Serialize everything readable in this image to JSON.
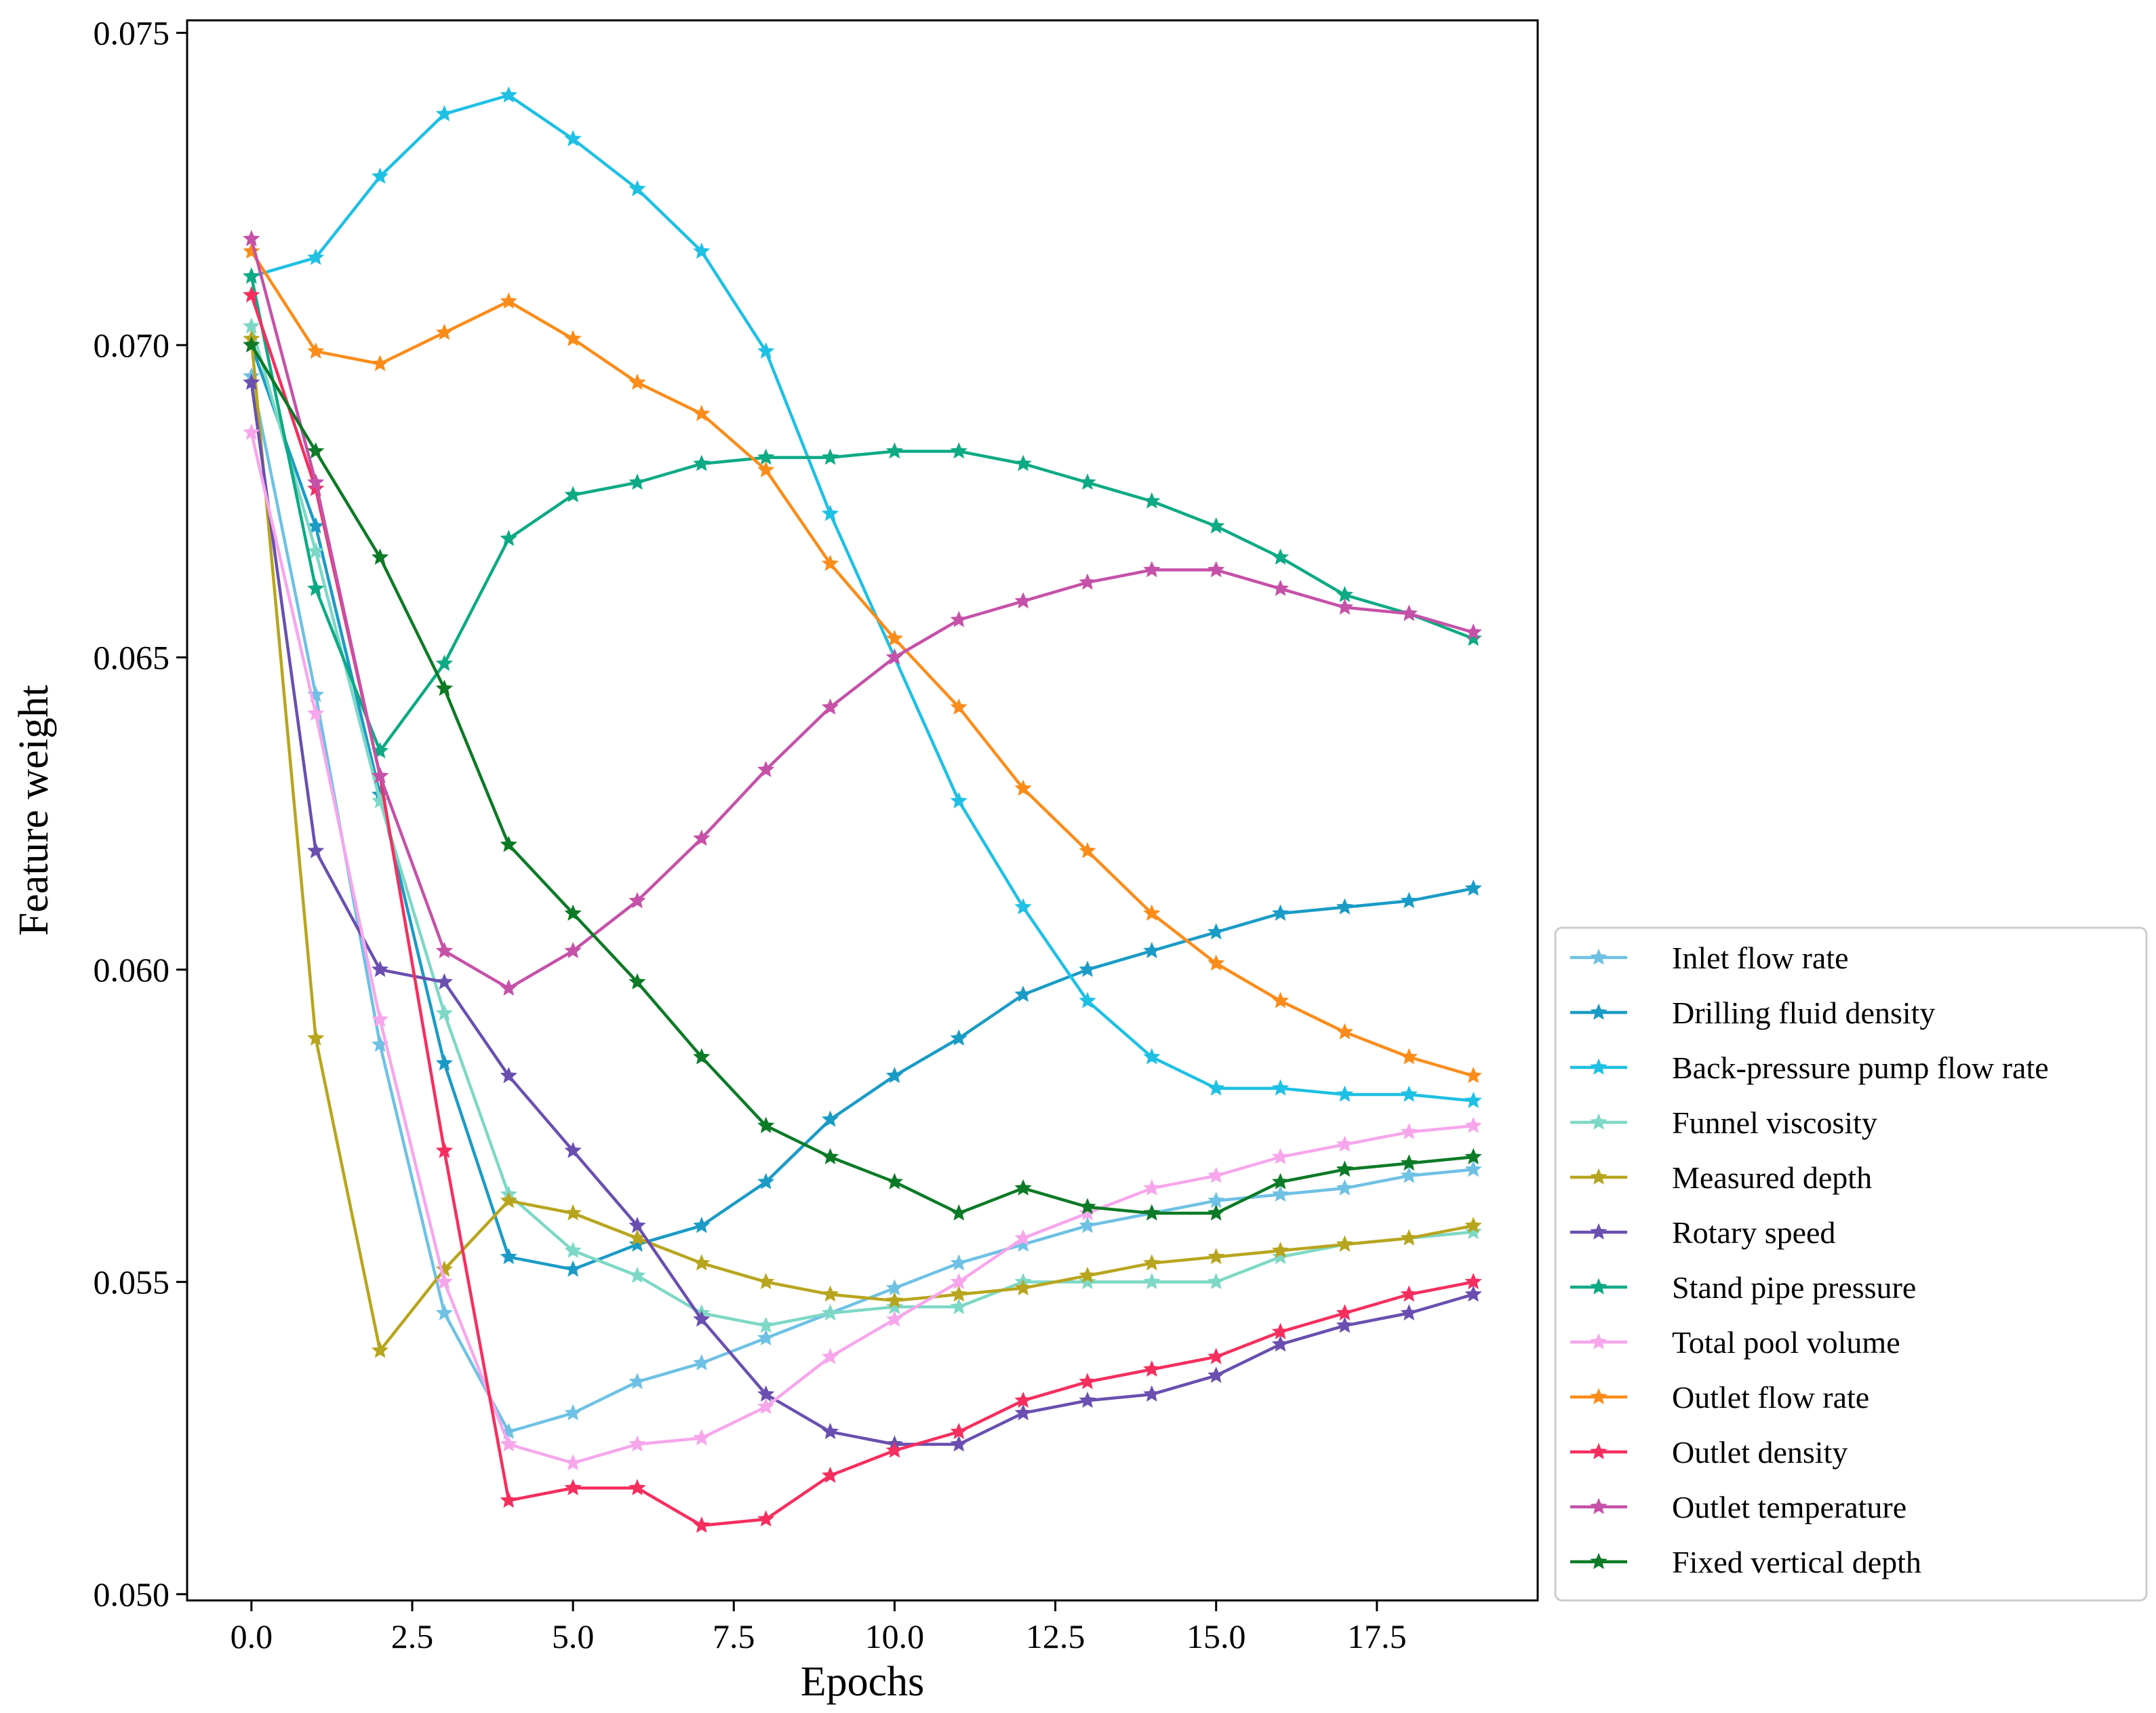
{
  "chart_data": {
    "type": "line",
    "title": "",
    "xlabel": "Epochs",
    "ylabel": "Feature weight",
    "xlim": [
      -1,
      20
    ],
    "ylim": [
      0.0499,
      0.0752
    ],
    "xticks": [
      "0.0",
      "2.5",
      "5.0",
      "7.5",
      "10.0",
      "12.5",
      "15.0",
      "17.5"
    ],
    "xtick_values": [
      0,
      2.5,
      5,
      7.5,
      10,
      12.5,
      15,
      17.5
    ],
    "yticks": [
      "0.050",
      "0.055",
      "0.060",
      "0.065",
      "0.070",
      "0.075"
    ],
    "ytick_values": [
      0.05,
      0.055,
      0.06,
      0.065,
      0.07,
      0.075
    ],
    "grid": false,
    "legend_position": "lower-right-outside",
    "marker": "star",
    "x": [
      0,
      1,
      2,
      3,
      4,
      5,
      6,
      7,
      8,
      9,
      10,
      11,
      12,
      13,
      14,
      15,
      16,
      17,
      18,
      19
    ],
    "series": [
      {
        "name": "Inlet flow rate",
        "color": "#6ec1e4",
        "values": [
          0.0695,
          0.0644,
          0.0588,
          0.0545,
          0.0526,
          0.0529,
          0.0534,
          0.0537,
          0.0541,
          0.0545,
          0.0549,
          0.0553,
          0.0556,
          0.0559,
          0.0561,
          0.0563,
          0.0564,
          0.0565,
          0.0567,
          0.0568
        ]
      },
      {
        "name": "Drilling fluid density",
        "color": "#1a9bc6",
        "values": [
          0.07,
          0.0671,
          0.0628,
          0.0585,
          0.0554,
          0.0552,
          0.0556,
          0.0559,
          0.0566,
          0.0576,
          0.0583,
          0.0589,
          0.0596,
          0.06,
          0.0603,
          0.0606,
          0.0609,
          0.061,
          0.0611,
          0.0613
        ]
      },
      {
        "name": "Back-pressure pump flow rate",
        "color": "#1ec0e4",
        "values": [
          0.0711,
          0.0714,
          0.0727,
          0.0737,
          0.074,
          0.0733,
          0.0725,
          0.0715,
          0.0699,
          0.0673,
          0.065,
          0.0627,
          0.061,
          0.0595,
          0.0586,
          0.0581,
          0.0581,
          0.058,
          0.058,
          0.0579
        ]
      },
      {
        "name": "Funnel viscosity",
        "color": "#7dd8c6",
        "values": [
          0.0703,
          0.0667,
          0.0627,
          0.0593,
          0.0564,
          0.0555,
          0.0551,
          0.0545,
          0.0543,
          0.0545,
          0.0546,
          0.0546,
          0.055,
          0.055,
          0.055,
          0.055,
          0.0554,
          0.0556,
          0.0557,
          0.0558
        ]
      },
      {
        "name": "Measured depth",
        "color": "#b8a51e",
        "values": [
          0.0701,
          0.0589,
          0.0539,
          0.0552,
          0.0563,
          0.0561,
          0.0557,
          0.0553,
          0.055,
          0.0548,
          0.0547,
          0.0548,
          0.0549,
          0.0551,
          0.0553,
          0.0554,
          0.0555,
          0.0556,
          0.0557,
          0.0559
        ]
      },
      {
        "name": "Rotary speed",
        "color": "#6a4fb0",
        "values": [
          0.0694,
          0.0619,
          0.06,
          0.0598,
          0.0583,
          0.0571,
          0.0559,
          0.0544,
          0.0532,
          0.0526,
          0.0524,
          0.0524,
          0.0529,
          0.0531,
          0.0532,
          0.0535,
          0.054,
          0.0543,
          0.0545,
          0.0548
        ]
      },
      {
        "name": "Stand pipe pressure",
        "color": "#0daa84",
        "values": [
          0.0711,
          0.0661,
          0.0635,
          0.0649,
          0.0669,
          0.0676,
          0.0678,
          0.0681,
          0.0682,
          0.0682,
          0.0683,
          0.0683,
          0.0681,
          0.0678,
          0.0675,
          0.0671,
          0.0666,
          0.066,
          0.0657,
          0.0653
        ]
      },
      {
        "name": "Total pool volume",
        "color": "#f7a6ec",
        "values": [
          0.0686,
          0.0641,
          0.0592,
          0.055,
          0.0524,
          0.0521,
          0.0524,
          0.0525,
          0.053,
          0.0538,
          0.0544,
          0.055,
          0.0557,
          0.0561,
          0.0565,
          0.0567,
          0.057,
          0.0572,
          0.0574,
          0.0575
        ]
      },
      {
        "name": "Outlet flow rate",
        "color": "#fb8c1a",
        "values": [
          0.0715,
          0.0699,
          0.0697,
          0.0702,
          0.0707,
          0.0701,
          0.0694,
          0.0689,
          0.068,
          0.0665,
          0.0653,
          0.0642,
          0.0629,
          0.0619,
          0.0609,
          0.0601,
          0.0595,
          0.059,
          0.0586,
          0.0583
        ]
      },
      {
        "name": "Outlet density",
        "color": "#f52e5e",
        "values": [
          0.0708,
          0.0677,
          0.0631,
          0.0571,
          0.0515,
          0.0517,
          0.0517,
          0.0511,
          0.0512,
          0.0519,
          0.0523,
          0.0526,
          0.0531,
          0.0534,
          0.0536,
          0.0538,
          0.0542,
          0.0545,
          0.0548,
          0.055
        ]
      },
      {
        "name": "Outlet temperature",
        "color": "#c551a8",
        "values": [
          0.0717,
          0.0678,
          0.0631,
          0.0603,
          0.0597,
          0.0603,
          0.0611,
          0.0621,
          0.0632,
          0.0642,
          0.065,
          0.0656,
          0.0659,
          0.0662,
          0.0664,
          0.0664,
          0.0661,
          0.0658,
          0.0657,
          0.0654
        ]
      },
      {
        "name": "Fixed vertical depth",
        "color": "#0c7a26",
        "values": [
          0.07,
          0.0683,
          0.0666,
          0.0645,
          0.062,
          0.0609,
          0.0598,
          0.0586,
          0.0575,
          0.057,
          0.0566,
          0.0561,
          0.0565,
          0.0562,
          0.0561,
          0.0561,
          0.0566,
          0.0568,
          0.0569,
          0.057
        ]
      }
    ]
  }
}
